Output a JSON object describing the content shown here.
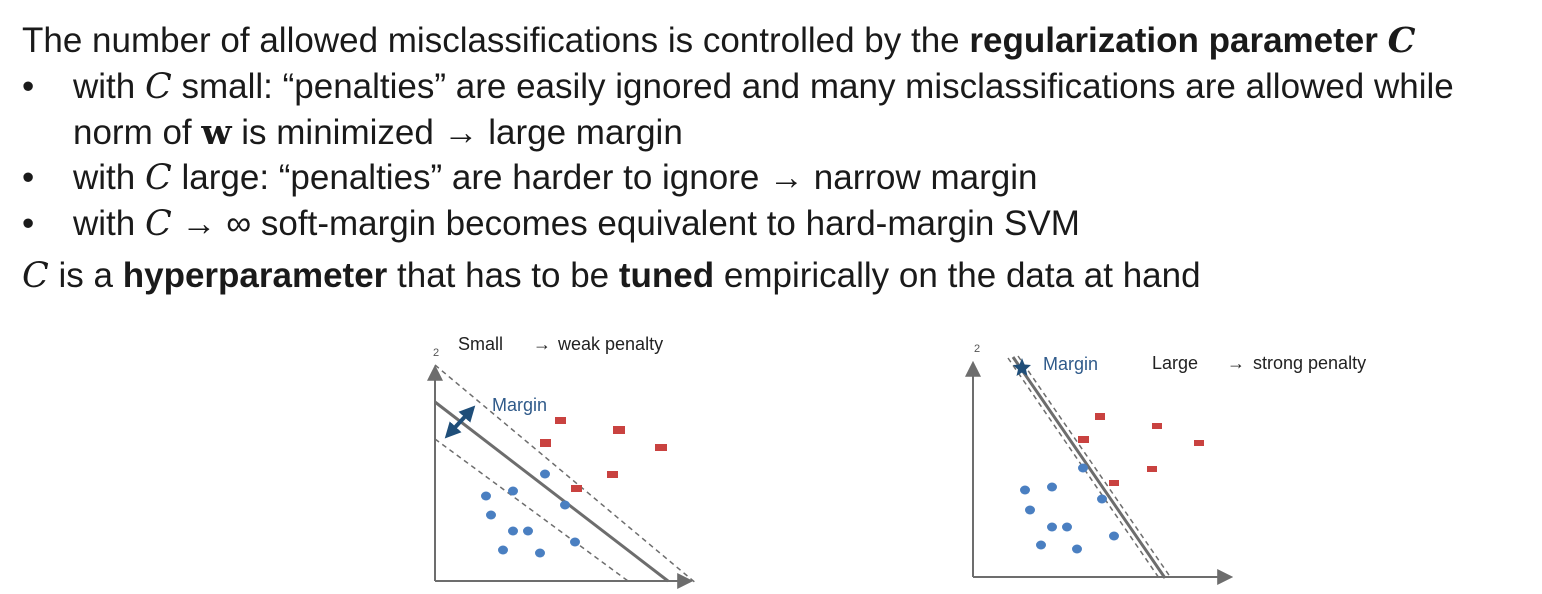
{
  "intro": {
    "prefix": "The number of allowed misclassifications is controlled by the ",
    "bold": "regularization parameter",
    "param": "C"
  },
  "bullets": [
    {
      "marker": "•",
      "with": "with",
      "param": "C",
      "text1": "small: “penalties” are easily ignored and many misclassifications are allowed while",
      "text2a": "norm of",
      "vec": "w",
      "text2b": "is minimized → large margin"
    },
    {
      "marker": "•",
      "with": "with",
      "param": "C",
      "text": "large: “penalties” are harder to ignore → narrow margin"
    },
    {
      "marker": "•",
      "with": "with",
      "param": "C",
      "text": "→ ∞ soft-margin becomes equivalent to hard-margin SVM"
    }
  ],
  "outro": {
    "param": "C",
    "t1": "is a",
    "b1": "hyperparameter",
    "t2": "that has to be",
    "b2": "tuned",
    "t3": "empirically on the data at hand"
  },
  "diagrams": {
    "left": {
      "axis_label": "2",
      "title": "Small",
      "arrow": "→",
      "subtitle": "weak penalty",
      "margin_label": "Margin"
    },
    "right": {
      "axis_label": "2",
      "title": "Large",
      "arrow": "→",
      "subtitle": "strong penalty",
      "margin_label": "Margin"
    }
  },
  "colors": {
    "circle": "#4a7fc1",
    "square": "#c94240",
    "margin_arrow": "#1f4e79",
    "margin_text": "#2f5a8a",
    "axis": "#6d6d6d"
  }
}
